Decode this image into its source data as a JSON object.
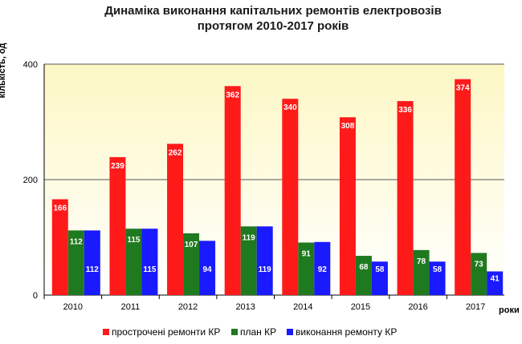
{
  "chart_data": {
    "type": "bar",
    "title_line1": "Динаміка виконання капітальних ремонтів електровозів",
    "title_line2": "протягом 2010-2017 років",
    "ylabel": "кількість, од",
    "xlabel": "роки",
    "ylim": [
      0,
      400
    ],
    "yticks": [
      "0",
      "200",
      "400"
    ],
    "grid": true,
    "legend_position": "bottom",
    "categories": [
      "2010",
      "2011",
      "2012",
      "2013",
      "2014",
      "2015",
      "2016",
      "2017"
    ],
    "series": [
      {
        "name": "прострочені ремонти КР",
        "color": "#ff1a1a",
        "values": [
          166,
          239,
          262,
          362,
          340,
          308,
          336,
          374
        ]
      },
      {
        "name": "план КР",
        "color": "#1f7a1f",
        "values": [
          112,
          115,
          107,
          119,
          91,
          68,
          78,
          73
        ]
      },
      {
        "name": "виконання ремонту КР",
        "color": "#1a1aff",
        "values": [
          112,
          115,
          94,
          119,
          92,
          58,
          58,
          41
        ]
      }
    ]
  }
}
